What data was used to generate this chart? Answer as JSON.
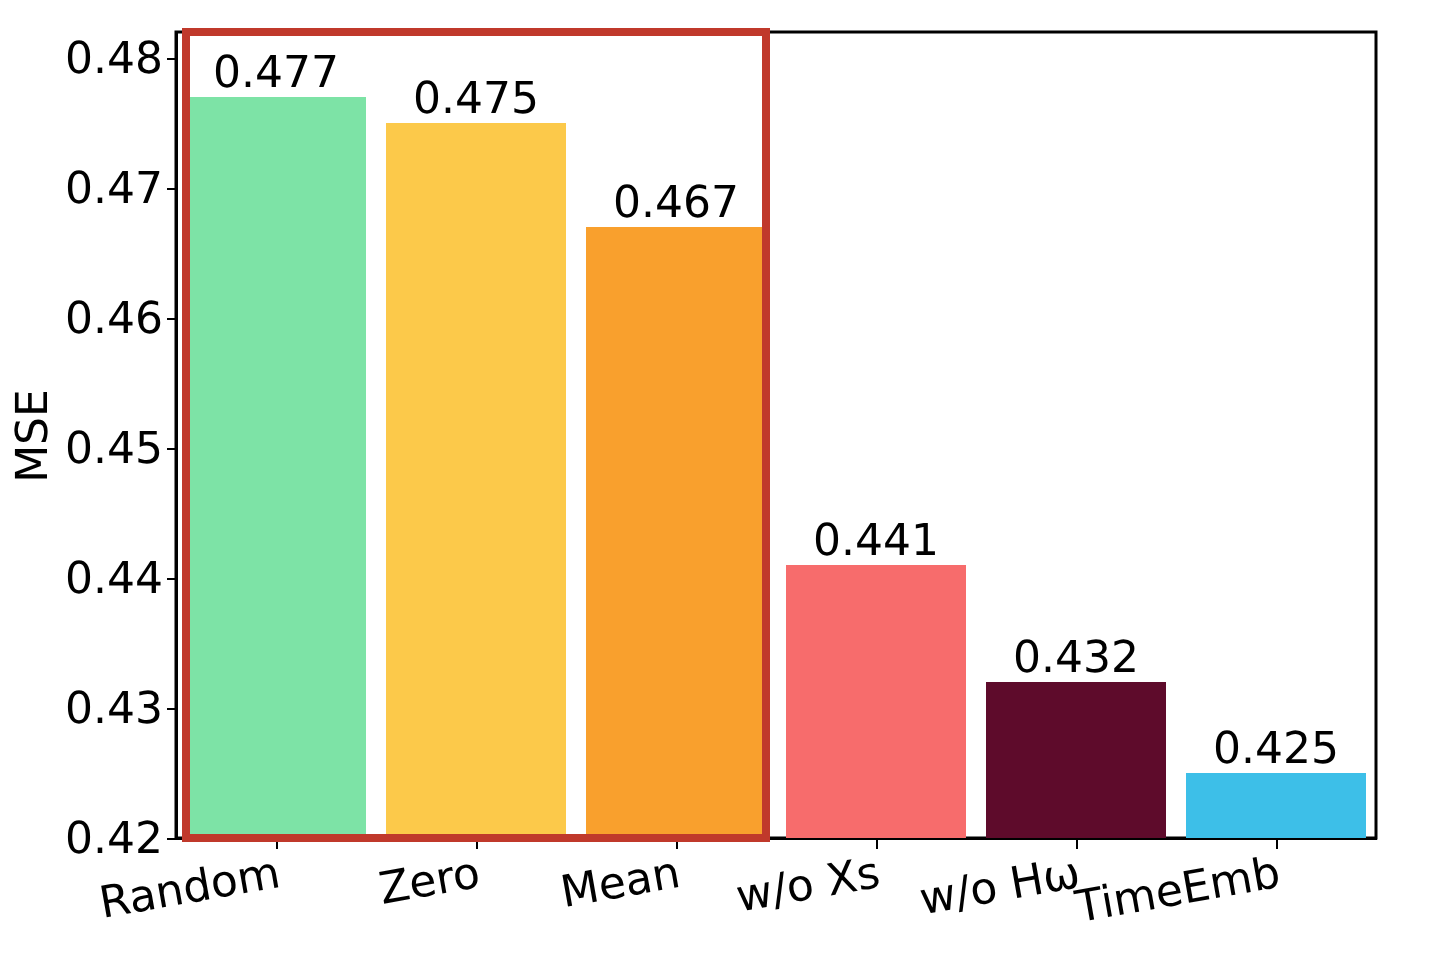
{
  "chart_data": {
    "type": "bar",
    "ylabel": "MSE",
    "categories": [
      "Random",
      "Zero",
      "Mean",
      "w/o Xs",
      "w/o Hω",
      "TimeEmb"
    ],
    "values": [
      0.477,
      0.475,
      0.467,
      0.441,
      0.432,
      0.425
    ],
    "colors": [
      "#7de3a6",
      "#fcc94a",
      "#f9a02d",
      "#f76c6c",
      "#5e0b2b",
      "#3dbfe8"
    ],
    "ylim": [
      0.42,
      0.482
    ],
    "yticks": [
      0.42,
      0.43,
      0.44,
      0.45,
      0.46,
      0.47,
      0.48
    ],
    "data_labels": true,
    "grid": false,
    "legend": false
  }
}
